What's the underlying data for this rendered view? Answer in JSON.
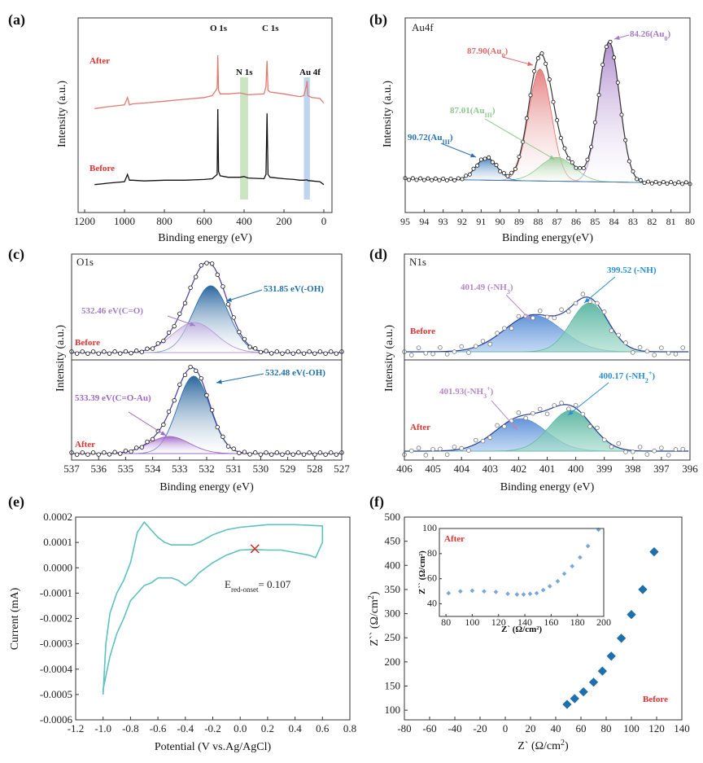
{
  "chart_data": [
    {
      "panel": "(a)",
      "type": "line",
      "xlabel": "Binding energy (eV)",
      "ylabel": "Intensity (a.u.)",
      "xlim": [
        1200,
        0
      ],
      "xticks": [
        "1200",
        "1000",
        "800",
        "600",
        "400",
        "200",
        "0"
      ],
      "series": [
        {
          "name": "After",
          "color": "#e07a6e",
          "x": [
            1150,
            1080,
            1000,
            985,
            975,
            960,
            900,
            800,
            700,
            600,
            560,
            535,
            532,
            528,
            520,
            480,
            420,
            400,
            380,
            300,
            290,
            285,
            280,
            270,
            200,
            150,
            120,
            100,
            86,
            84,
            80,
            60,
            20,
            0
          ],
          "y": [
            6.3,
            6.4,
            6.5,
            6.9,
            6.5,
            6.55,
            6.6,
            6.7,
            6.8,
            6.9,
            7.0,
            7.4,
            9.2,
            7.3,
            7.1,
            7.1,
            7.15,
            7.1,
            7.05,
            7.1,
            7.5,
            8.9,
            7.3,
            7.2,
            7.1,
            7.0,
            6.95,
            7.0,
            7.6,
            7.8,
            7.0,
            6.9,
            6.85,
            6.6
          ]
        },
        {
          "name": "Before",
          "color": "#111111",
          "x": [
            1150,
            1080,
            1000,
            985,
            975,
            960,
            900,
            800,
            700,
            600,
            560,
            535,
            532,
            528,
            520,
            480,
            420,
            400,
            380,
            300,
            290,
            285,
            280,
            270,
            200,
            150,
            120,
            100,
            86,
            84,
            80,
            60,
            20,
            0
          ],
          "y": [
            0.3,
            0.4,
            0.5,
            1.0,
            0.6,
            0.6,
            0.55,
            0.6,
            0.6,
            0.65,
            0.7,
            1.0,
            5.5,
            1.2,
            0.9,
            0.8,
            0.8,
            0.85,
            0.75,
            0.7,
            1.0,
            5.2,
            1.0,
            0.8,
            0.7,
            0.65,
            0.6,
            0.6,
            0.62,
            0.62,
            0.58,
            0.55,
            0.5,
            0.3
          ]
        }
      ],
      "annotations": [
        {
          "text": "O 1s",
          "x": 532
        },
        {
          "text": "C 1s",
          "x": 285
        },
        {
          "text": "N 1s",
          "x": 400
        },
        {
          "text": "Au 4f",
          "x": 84
        }
      ],
      "highlight_bands": [
        {
          "name": "N 1s band",
          "x0": 420,
          "x1": 380,
          "color": "#b9dcae"
        },
        {
          "name": "Au 4f band",
          "x0": 100,
          "x1": 70,
          "color": "#a8c6ea"
        }
      ],
      "labels": [
        "After",
        "Before"
      ]
    },
    {
      "panel": "(b)",
      "type": "line",
      "title": "Au4f",
      "xlabel": "Binding energy(eV)",
      "ylabel": "Intensity (a.u.)",
      "xlim": [
        95,
        80
      ],
      "xticks": [
        "95",
        "94",
        "93",
        "92",
        "91",
        "90",
        "89",
        "88",
        "87",
        "86",
        "85",
        "84",
        "83",
        "82",
        "81",
        "80"
      ],
      "peaks": [
        {
          "label": "84.26(Au0)",
          "center": 84.26,
          "height": 100,
          "color": "#a37bc7"
        },
        {
          "label": "87.90(Au0)",
          "center": 87.9,
          "height": 80,
          "color": "#e06a6a"
        },
        {
          "label": "87.01(AuIII)",
          "center": 87.01,
          "height": 17,
          "color": "#8dc88d"
        },
        {
          "label": "90.72(AuIII)",
          "center": 90.72,
          "height": 16,
          "color": "#2a6fb5"
        }
      ],
      "annotation_texts": {
        "p1_main": "84.26(Au",
        "p1_sub": "0",
        "p1_tail": ")",
        "p2_main": "87.90(Au",
        "p2_sub": "0",
        "p2_tail": ")",
        "p3_main": "87.01(Au",
        "p3_sub": "III",
        "p3_tail": ")",
        "p4_main": "90.72(Au",
        "p4_sub": "III",
        "p4_tail": ")"
      }
    },
    {
      "panel": "(c)",
      "type": "line",
      "title": "O1s",
      "xlabel": "Binding energy (eV)",
      "ylabel": "Intensity (a.u.)",
      "xlim": [
        537,
        527
      ],
      "xticks": [
        "537",
        "536",
        "535",
        "534",
        "533",
        "532",
        "531",
        "530",
        "529",
        "528",
        "527"
      ],
      "groups": [
        {
          "name": "Before",
          "peaks": [
            {
              "label": "531.85 eV(-OH)",
              "center": 531.85,
              "height": 100,
              "color": "#2f6fa8"
            },
            {
              "label": "532.46 eV(C=O)",
              "center": 532.46,
              "height": 45,
              "color": "#b49bd8"
            }
          ]
        },
        {
          "name": "After",
          "peaks": [
            {
              "label": "532.48 eV(-OH)",
              "center": 532.48,
              "height": 100,
              "color": "#2f6fa8"
            },
            {
              "label": "533.39 eV(C=O-Au)",
              "center": 533.39,
              "height": 22,
              "color": "#a168c7"
            }
          ]
        }
      ]
    },
    {
      "panel": "(d)",
      "type": "line",
      "title": "N1s",
      "xlabel": "Binding energy (eV)",
      "ylabel": "Intensity (a.u.)",
      "xlim": [
        406,
        396
      ],
      "xticks": [
        "406",
        "405",
        "404",
        "403",
        "402",
        "401",
        "400",
        "399",
        "398",
        "397",
        "396"
      ],
      "groups": [
        {
          "name": "Before",
          "peaks": [
            {
              "label": "401.49 (-NH3)",
              "center": 401.49,
              "height": 75,
              "color": "#5d92d6"
            },
            {
              "label": "399.52 (-NH)",
              "center": 399.52,
              "height": 100,
              "color": "#5fb9a3"
            }
          ]
        },
        {
          "name": "After",
          "peaks": [
            {
              "label": "401.93(-NH3+)",
              "center": 401.93,
              "height": 80,
              "color": "#5d92d6"
            },
            {
              "label": "400.17 (-NH2+)",
              "center": 400.17,
              "height": 100,
              "color": "#5fb9a3"
            }
          ]
        }
      ],
      "annotation_texts": {
        "b1_main": "401.49 (-NH",
        "b1_sub": "3",
        "b1_tail": ")",
        "b2": "399.52 (-NH)",
        "a1_main": "401.93(-NH",
        "a1_sub": "3",
        "a1_sup": "+",
        "a1_tail": ")",
        "a2_main": "400.17 (-NH",
        "a2_sub": "2",
        "a2_sup": "+",
        "a2_tail": ")"
      }
    },
    {
      "panel": "(e)",
      "type": "line",
      "xlabel": "Potential (V vs.Ag/AgCl)",
      "ylabel": "Current (mA)",
      "xlim": [
        -1.2,
        0.8
      ],
      "ylim": [
        -0.0006,
        0.0002
      ],
      "xticks": [
        "-1.2",
        "-1.0",
        "-0.8",
        "-0.6",
        "-0.4",
        "-0.2",
        "0.0",
        "0.2",
        "0.4",
        "0.6",
        "0.8"
      ],
      "yticks": [
        "0.0002",
        "0.0001",
        "0.0000",
        "-0.0001",
        "-0.0002",
        "-0.0003",
        "-0.0004",
        "-0.0005",
        "-0.0006"
      ],
      "series": [
        {
          "name": "CV",
          "color": "#5cc2bd",
          "x": [
            -1.0,
            -0.98,
            -0.95,
            -0.9,
            -0.85,
            -0.8,
            -0.75,
            -0.7,
            -0.65,
            -0.6,
            -0.55,
            -0.5,
            -0.45,
            -0.4,
            -0.35,
            -0.3,
            -0.2,
            -0.1,
            0.0,
            0.1,
            0.2,
            0.3,
            0.4,
            0.5,
            0.6,
            0.6,
            0.55,
            0.5,
            0.4,
            0.3,
            0.2,
            0.1,
            0.0,
            -0.1,
            -0.2,
            -0.3,
            -0.35,
            -0.4,
            -0.45,
            -0.5,
            -0.55,
            -0.6,
            -0.65,
            -0.7,
            -0.75,
            -0.8,
            -0.85,
            -0.9,
            -0.95,
            -1.0
          ],
          "y": [
            -0.0005,
            -0.0003,
            -0.00018,
            -0.0001,
            -5e-05,
            2e-05,
            0.00014,
            0.00018,
            0.00015,
            0.00012,
            0.0001,
            9e-05,
            9e-05,
            9e-05,
            9e-05,
            0.0001,
            0.00013,
            0.00015,
            0.00016,
            0.000165,
            0.00017,
            0.00017,
            0.00017,
            0.000168,
            0.000165,
            0.0001,
            4e-05,
            5e-05,
            6e-05,
            7e-05,
            7e-05,
            7.2e-05,
            7e-05,
            5e-05,
            2e-05,
            -2e-05,
            -5e-05,
            -7e-05,
            -5e-05,
            -4e-05,
            -4e-05,
            -4e-05,
            -6e-05,
            -7e-05,
            -0.0001,
            -0.00013,
            -0.0002,
            -0.00026,
            -0.00035,
            -0.00048
          ]
        }
      ],
      "annotation": {
        "text_main": "E",
        "text_sub": "red-onset",
        "text_tail": "= 0.107",
        "x": 0.107,
        "y": 7.5e-05
      }
    },
    {
      "panel": "(f)",
      "type": "scatter",
      "xlabel": "Z` (Ω/cm2)",
      "ylabel": "Z`` (Ω/cm2)",
      "xlim": [
        -80,
        140
      ],
      "ylim": [
        80,
        500
      ],
      "xticks": [
        "-80",
        "-60",
        "-40",
        "-20",
        "0",
        "20",
        "40",
        "60",
        "80",
        "100",
        "120",
        "140"
      ],
      "yticks": [
        "500",
        "450",
        "400",
        "350",
        "300",
        "250",
        "200",
        "150",
        "100"
      ],
      "series": [
        {
          "name": "Before",
          "color": "#1f6fad",
          "x": [
            49,
            55,
            62,
            70,
            77,
            84,
            92,
            100,
            109,
            118
          ],
          "y": [
            112,
            124,
            138,
            158,
            181,
            212,
            249,
            298,
            350,
            428
          ]
        }
      ],
      "label": "Before",
      "inset": {
        "label": "After",
        "xlabel": "Z` (Ω/cm2)",
        "ylabel": "Z`` (Ω/cm2)",
        "xlim": [
          75,
          200
        ],
        "ylim": [
          30,
          100
        ],
        "xticks": [
          "80",
          "100",
          "120",
          "140",
          "160",
          "180",
          "200"
        ],
        "yticks": [
          "100",
          "80",
          "60",
          "40"
        ],
        "x": [
          82,
          91,
          100,
          109,
          118,
          127,
          134,
          139,
          144,
          149,
          154,
          159,
          165,
          170,
          176,
          182,
          188,
          196
        ],
        "y": [
          48.5,
          50,
          50.5,
          50,
          49.5,
          48,
          47.5,
          47.5,
          48,
          48.5,
          51,
          54,
          58,
          64,
          70,
          77,
          86,
          99
        ]
      }
    }
  ]
}
